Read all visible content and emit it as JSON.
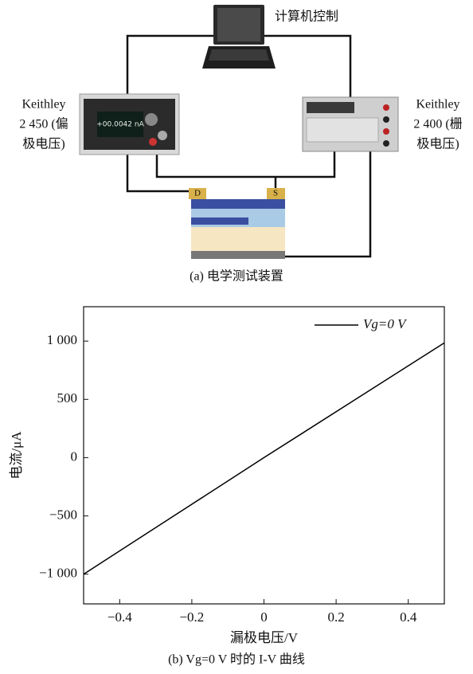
{
  "diagram": {
    "computer_label": "计算机控制",
    "left_instrument": {
      "lines": [
        "Keithley",
        "2 450 (偏",
        "极电压)"
      ],
      "screen_text": "+00.0042 nA"
    },
    "right_instrument": {
      "lines": [
        "Keithley",
        "2 400 (栅",
        "极电压)"
      ]
    },
    "drain_label": "D",
    "source_label": "S",
    "caption": "(a) 电学测试装置"
  },
  "chart_data": {
    "type": "line",
    "x": [
      -0.5,
      0,
      0.5
    ],
    "series": [
      {
        "name": "Vg=0 V",
        "color": "#000000",
        "values": [
          -1000,
          0,
          985
        ]
      }
    ],
    "xlim": [
      -0.5,
      0.5
    ],
    "xticks": [
      {
        "value": -0.4,
        "label": "−0.4"
      },
      {
        "value": -0.2,
        "label": "−0.2"
      },
      0,
      {
        "value": 0.2,
        "label": "0.2"
      },
      {
        "value": 0.4,
        "label": "0.4"
      }
    ],
    "ylim": [
      -1255,
      1295
    ],
    "yticks": [
      {
        "value": -1000,
        "label": "−1 000"
      },
      {
        "value": -500,
        "label": "−500"
      },
      0,
      500,
      {
        "value": 1000,
        "label": "1 000"
      }
    ],
    "xlabel": "漏极电压/V",
    "ylabel": "电流/μA",
    "caption": "(b) Vg=0 V 时的 I-V 曲线",
    "legend": "upper right"
  }
}
